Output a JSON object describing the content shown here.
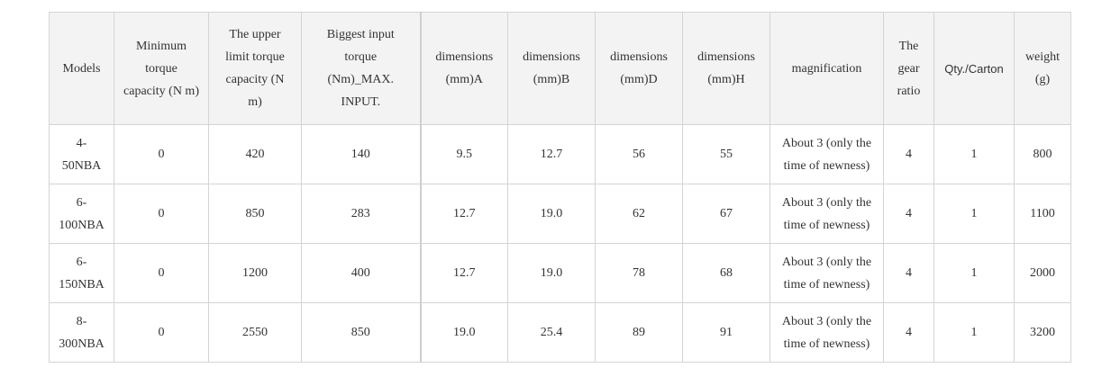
{
  "table": {
    "header": [
      "Models",
      "Minimum torque capacity (N m)",
      "The upper limit torque capacity (N m)",
      "Biggest input torque (Nm)_MAX. INPUT.",
      "dimensions (mm)A",
      "dimensions (mm)B",
      "dimensions (mm)D",
      "dimensions (mm)H",
      "magnification",
      "The gear ratio",
      "Qty./Carton",
      "weight (g)"
    ],
    "rows": [
      [
        "4-50NBA",
        "0",
        "420",
        "140",
        "9.5",
        "12.7",
        "56",
        "55",
        "About 3 (only the time of newness)",
        "4",
        "1",
        "800"
      ],
      [
        "6-100NBA",
        "0",
        "850",
        "283",
        "12.7",
        "19.0",
        "62",
        "67",
        "About 3 (only the time of newness)",
        "4",
        "1",
        "1100"
      ],
      [
        "6-150NBA",
        "0",
        "1200",
        "400",
        "12.7",
        "19.0",
        "78",
        "68",
        "About 3 (only the time of newness)",
        "4",
        "1",
        "2000"
      ],
      [
        "8-300NBA",
        "0",
        "2550",
        "850",
        "19.0",
        "25.4",
        "89",
        "91",
        "About 3 (only the time of newness)",
        "4",
        "1",
        "3200"
      ]
    ]
  }
}
